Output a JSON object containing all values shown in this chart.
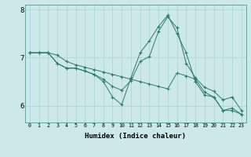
{
  "xlabel": "Humidex (Indice chaleur)",
  "background_color": "#cce8e8",
  "grid_color": "#aad0d0",
  "line_color": "#2d7a6a",
  "xlim": [
    -0.5,
    23.5
  ],
  "ylim": [
    5.65,
    8.1
  ],
  "yticks": [
    6,
    7,
    8
  ],
  "ytick_labels": [
    "6",
    "7",
    "8"
  ],
  "xticks": [
    0,
    1,
    2,
    3,
    4,
    5,
    6,
    7,
    8,
    9,
    10,
    11,
    12,
    13,
    14,
    15,
    16,
    17,
    18,
    19,
    20,
    21,
    22,
    23
  ],
  "lines": [
    {
      "x": [
        0,
        1,
        2,
        3,
        4,
        5,
        6,
        7,
        8,
        9,
        10,
        11,
        12,
        13,
        14,
        15,
        16,
        17,
        18,
        19,
        20,
        21,
        22,
        23
      ],
      "y": [
        7.1,
        7.1,
        7.1,
        7.05,
        6.92,
        6.85,
        6.8,
        6.75,
        6.7,
        6.65,
        6.6,
        6.55,
        6.5,
        6.45,
        6.4,
        6.35,
        6.68,
        6.62,
        6.55,
        6.28,
        6.18,
        5.9,
        5.9,
        5.82
      ]
    },
    {
      "x": [
        0,
        1,
        2,
        3,
        4,
        5,
        6,
        7,
        8,
        9,
        10,
        11,
        12,
        13,
        14,
        15,
        16,
        17,
        18,
        19,
        20,
        21,
        22,
        23
      ],
      "y": [
        7.1,
        7.1,
        7.1,
        6.88,
        6.78,
        6.78,
        6.72,
        6.65,
        6.5,
        6.18,
        6.02,
        6.58,
        7.1,
        7.35,
        7.65,
        7.88,
        7.5,
        7.1,
        6.5,
        6.22,
        6.18,
        5.9,
        5.95,
        5.82
      ]
    },
    {
      "x": [
        0,
        1,
        2,
        3,
        4,
        5,
        6,
        7,
        8,
        9,
        10,
        11,
        12,
        13,
        14,
        15,
        16,
        17,
        18,
        19,
        20,
        21,
        22,
        23
      ],
      "y": [
        7.1,
        7.1,
        7.1,
        6.88,
        6.78,
        6.78,
        6.72,
        6.65,
        6.55,
        6.4,
        6.32,
        6.52,
        6.92,
        7.02,
        7.55,
        7.85,
        7.62,
        6.88,
        6.58,
        6.38,
        6.3,
        6.12,
        6.18,
        5.9
      ]
    }
  ]
}
